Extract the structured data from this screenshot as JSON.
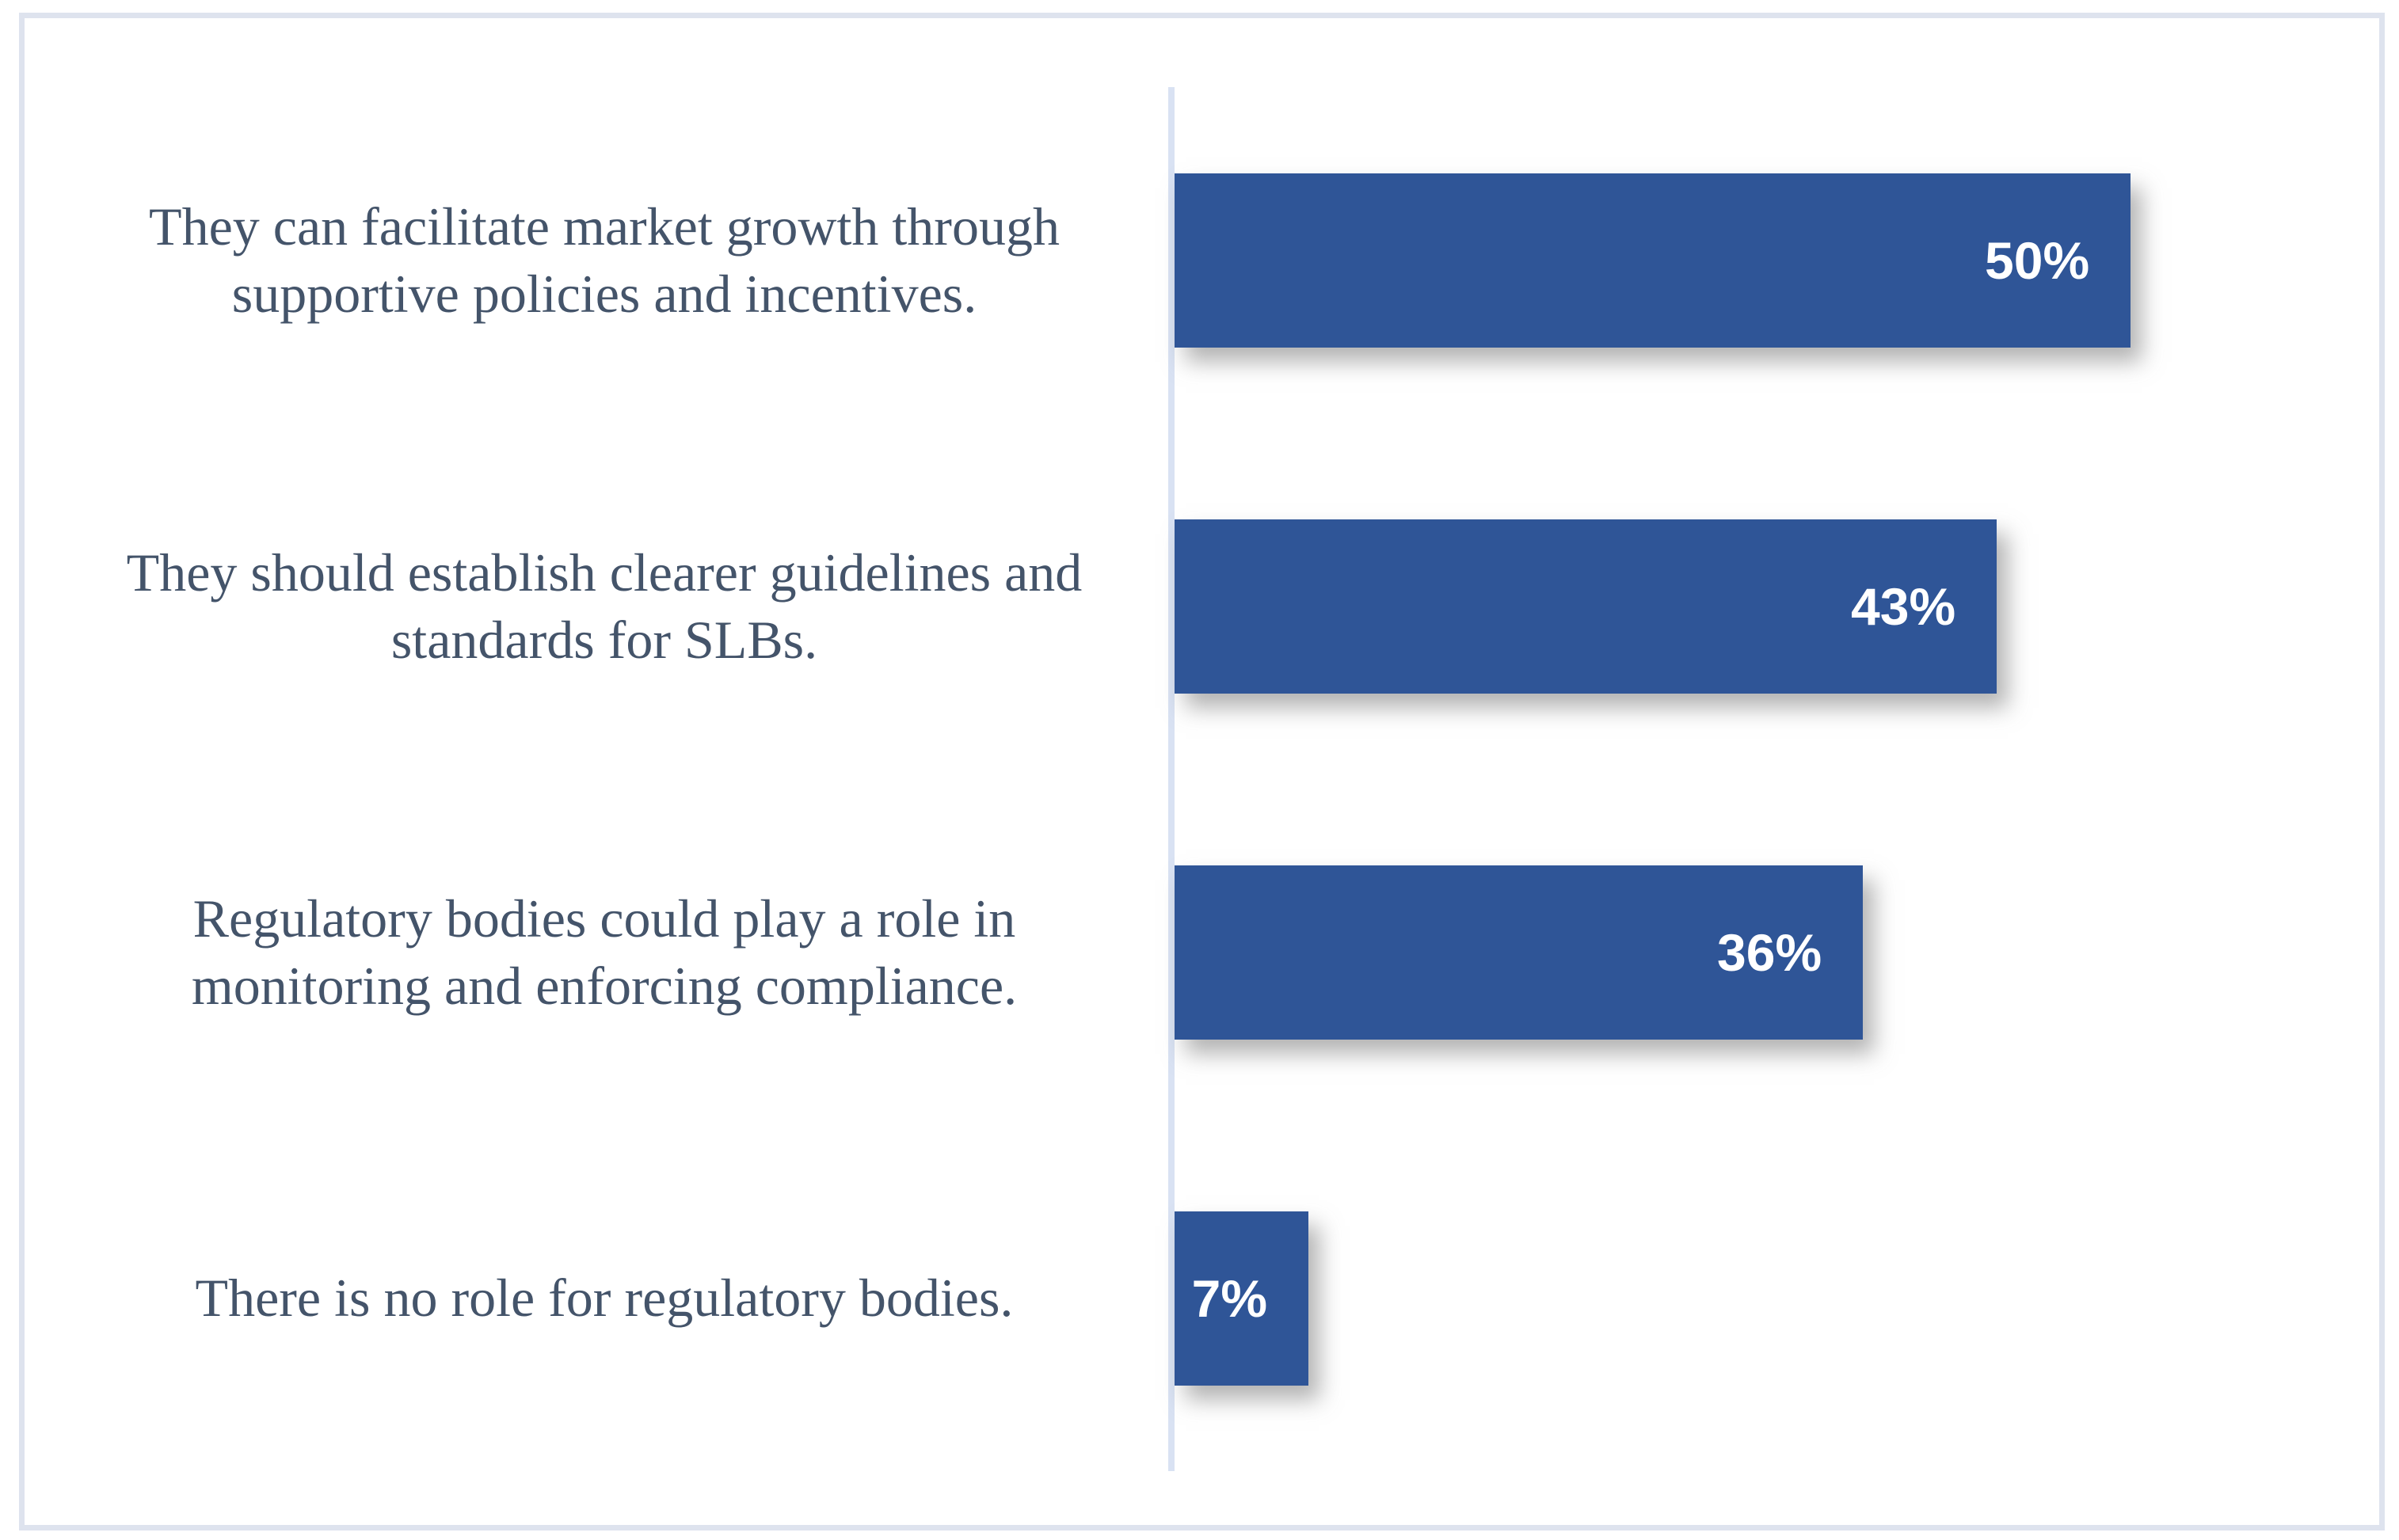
{
  "chart_data": {
    "type": "bar",
    "orientation": "horizontal",
    "title": "",
    "xlabel": "",
    "ylabel": "",
    "categories": [
      "They can facilitate market growth through\nsupportive policies and incentives.",
      "They should establish clearer guidelines and\nstandards for SLBs.",
      "Regulatory bodies could play a role in\nmonitoring and enforcing compliance.",
      "There is no role for regulatory bodies."
    ],
    "values": [
      50,
      43,
      36,
      7
    ],
    "value_labels": [
      "50%",
      "43%",
      "36%",
      "7%"
    ],
    "unit": "percent",
    "xlim": [
      0,
      63
    ],
    "grid": false,
    "legend": false,
    "axis_tick_labels_shown": false,
    "colors": {
      "bar": "#2F5597",
      "category_label_text": "#44546A",
      "value_label_text": "#FFFFFF",
      "axis_line": "#D9E2F3",
      "frame_border": "#DEE3EE",
      "background": "#FFFFFF"
    }
  }
}
